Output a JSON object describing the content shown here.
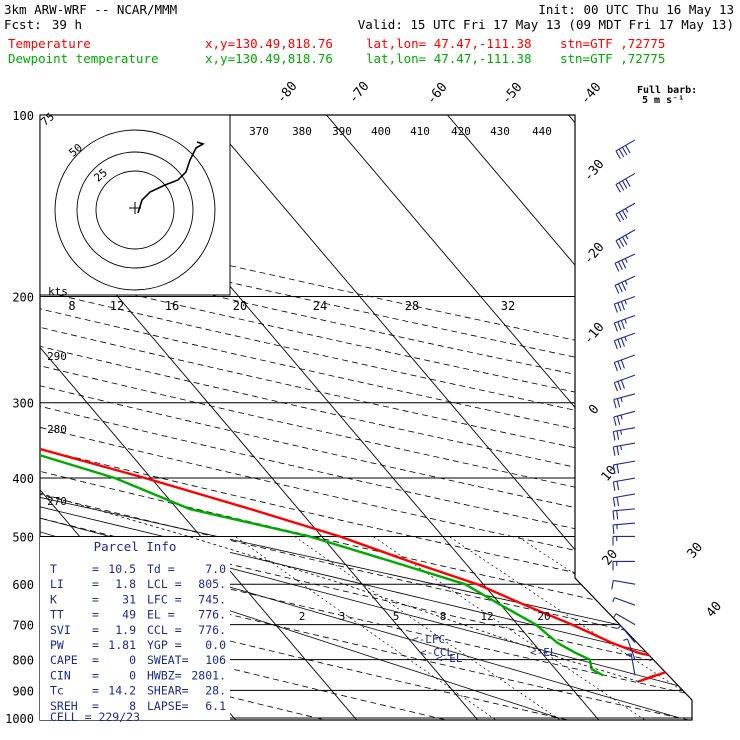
{
  "header": {
    "left1": "3km ARW-WRF -- NCAR/MMM",
    "right1": "Init: 00 UTC Thu 16 May 13",
    "fcst_label": "Fcst:",
    "fcst_value": "39 h",
    "valid": "Valid: 15 UTC Fri 17 May 13 (09 MDT Fri 17 May 13)",
    "temp_label": "Temperature",
    "dew_label": "Dewpoint temperature",
    "xy": "x,y=130.49,818.76",
    "latlon": "lat,lon= 47.47,-111.38",
    "stn": "stn=GTF ,72775",
    "barb_label1": "Full barb:",
    "barb_label2": "5 m s⁻¹"
  },
  "chart_data": {
    "type": "line",
    "title": "",
    "pressure_ticks": [
      100,
      200,
      300,
      400,
      500,
      600,
      700,
      800,
      900,
      1000
    ],
    "isotherm_labels": [
      "-80",
      "-70",
      "-60",
      "-50",
      "-40",
      "-30",
      "-20",
      "-10",
      "0",
      "10",
      "20",
      "30",
      "40"
    ],
    "isotherm_values": [
      -80,
      -70,
      -60,
      -50,
      -40,
      -30,
      -20,
      -10,
      0,
      10,
      20,
      30,
      40
    ],
    "theta_labels": [
      "370",
      "380",
      "390",
      "400",
      "410",
      "420",
      "430",
      "440"
    ],
    "mixing_ratio_labels": [
      "2",
      "3",
      "5",
      "8",
      "12",
      "20"
    ],
    "theta_e_labels": [
      "290",
      "280",
      "270"
    ],
    "hodograph_rings": [
      "75",
      "50",
      "25"
    ],
    "hodo_speed_labels": [
      "8",
      "12",
      "16",
      "20",
      "24",
      "28",
      "32"
    ],
    "hodo_kts_label": "kts",
    "series": [
      {
        "name": "Temperature",
        "color": "#ff0000",
        "points": [
          [
            850,
            7.8
          ],
          [
            870,
            6.0
          ],
          [
            830,
            9.8
          ],
          [
            800,
            10.2
          ],
          [
            780,
            8.0
          ],
          [
            750,
            6.5
          ],
          [
            700,
            4.5
          ],
          [
            650,
            2.0
          ],
          [
            600,
            -0.5
          ],
          [
            550,
            -4.5
          ],
          [
            500,
            -8.5
          ],
          [
            450,
            -14.0
          ],
          [
            400,
            -20.5
          ],
          [
            350,
            -28.5
          ],
          [
            320,
            -35.0
          ],
          [
            300,
            -40.0
          ],
          [
            270,
            -48.5
          ],
          [
            250,
            -54.0
          ],
          [
            230,
            -57.5
          ],
          [
            210,
            -59.0
          ],
          [
            200,
            -59.0
          ],
          [
            180,
            -58.0
          ],
          [
            160,
            -57.5
          ],
          [
            140,
            -56.5
          ],
          [
            120,
            -57.5
          ],
          [
            105,
            -58.0
          ]
        ]
      },
      {
        "name": "Dewpoint temperature",
        "color": "#00aa00",
        "points": [
          [
            850,
            3.5
          ],
          [
            830,
            3.0
          ],
          [
            800,
            3.5
          ],
          [
            780,
            2.8
          ],
          [
            750,
            2.0
          ],
          [
            700,
            1.5
          ],
          [
            650,
            0.0
          ],
          [
            600,
            -1.5
          ],
          [
            550,
            -6.0
          ],
          [
            500,
            -11.0
          ],
          [
            450,
            -19.0
          ],
          [
            400,
            -23.0
          ],
          [
            350,
            -30.0
          ],
          [
            300,
            -44.0
          ],
          [
            270,
            -62.0
          ],
          [
            250,
            -76.0
          ],
          [
            235,
            -80.0
          ],
          [
            210,
            -79.0
          ],
          [
            180,
            -79.5
          ],
          [
            160,
            -80.5
          ],
          [
            140,
            -83.0
          ],
          [
            120,
            -85.0
          ],
          [
            100,
            -85.0
          ]
        ]
      }
    ],
    "parcel_points": [
      [
        870,
        6.0
      ],
      [
        800,
        1.5
      ],
      [
        700,
        -4.5
      ],
      [
        600,
        -11.5
      ],
      [
        500,
        -21.0
      ],
      [
        400,
        -33.5
      ],
      [
        300,
        -50.0
      ],
      [
        250,
        -60.0
      ],
      [
        200,
        -70.0
      ]
    ],
    "level_markers": [
      "<-LFC",
      "<-CCL",
      "<-EL",
      "<-EL"
    ],
    "wind_barbs": [
      {
        "p": 110,
        "speed": 40,
        "dir": 240
      },
      {
        "p": 125,
        "speed": 40,
        "dir": 240
      },
      {
        "p": 140,
        "speed": 35,
        "dir": 240
      },
      {
        "p": 155,
        "speed": 35,
        "dir": 240
      },
      {
        "p": 170,
        "speed": 35,
        "dir": 245
      },
      {
        "p": 185,
        "speed": 35,
        "dir": 245
      },
      {
        "p": 200,
        "speed": 35,
        "dir": 250
      },
      {
        "p": 215,
        "speed": 35,
        "dir": 250
      },
      {
        "p": 230,
        "speed": 35,
        "dir": 250
      },
      {
        "p": 250,
        "speed": 30,
        "dir": 250
      },
      {
        "p": 270,
        "speed": 30,
        "dir": 250
      },
      {
        "p": 290,
        "speed": 25,
        "dir": 255
      },
      {
        "p": 310,
        "speed": 25,
        "dir": 255
      },
      {
        "p": 330,
        "speed": 25,
        "dir": 260
      },
      {
        "p": 350,
        "speed": 25,
        "dir": 260
      },
      {
        "p": 375,
        "speed": 20,
        "dir": 260
      },
      {
        "p": 400,
        "speed": 20,
        "dir": 260
      },
      {
        "p": 425,
        "speed": 20,
        "dir": 260
      },
      {
        "p": 450,
        "speed": 20,
        "dir": 265
      },
      {
        "p": 475,
        "speed": 15,
        "dir": 265
      },
      {
        "p": 500,
        "speed": 15,
        "dir": 270
      },
      {
        "p": 550,
        "speed": 15,
        "dir": 270
      },
      {
        "p": 600,
        "speed": 10,
        "dir": 280
      },
      {
        "p": 650,
        "speed": 5,
        "dir": 290
      },
      {
        "p": 700,
        "speed": 5,
        "dir": 300
      },
      {
        "p": 750,
        "speed": 5,
        "dir": 320
      },
      {
        "p": 800,
        "speed": 5,
        "dir": 340
      },
      {
        "p": 850,
        "speed": 5,
        "dir": 350
      }
    ]
  },
  "parcel_info": {
    "title": "Parcel Info",
    "rows": [
      {
        "a_k": "T",
        "a_v": "10.5",
        "b_k": "Td =",
        "b_v": "7.0"
      },
      {
        "a_k": "LI",
        "a_v": "1.8",
        "b_k": "LCL =",
        "b_v": "805."
      },
      {
        "a_k": "K",
        "a_v": "31",
        "b_k": "LFC =",
        "b_v": "745."
      },
      {
        "a_k": "TT",
        "a_v": "49",
        "b_k": "EL =",
        "b_v": "776."
      },
      {
        "a_k": "SVI",
        "a_v": "1.9",
        "b_k": "CCL =",
        "b_v": "776."
      },
      {
        "a_k": "PW",
        "a_v": "1.81",
        "b_k": "YGP =",
        "b_v": "0.0"
      },
      {
        "a_k": "CAPE",
        "a_v": "0",
        "b_k": "SWEAT=",
        "b_v": "106"
      },
      {
        "a_k": "CIN",
        "a_v": "0",
        "b_k": "HWBZ=",
        "b_v": "2801."
      },
      {
        "a_k": "Tc",
        "a_v": "14.2",
        "b_k": "SHEAR=",
        "b_v": "28."
      },
      {
        "a_k": "SREH",
        "a_v": "8",
        "b_k": "LAPSE=",
        "b_v": "6.1"
      }
    ],
    "cell_label": "CELL = 229/23"
  }
}
